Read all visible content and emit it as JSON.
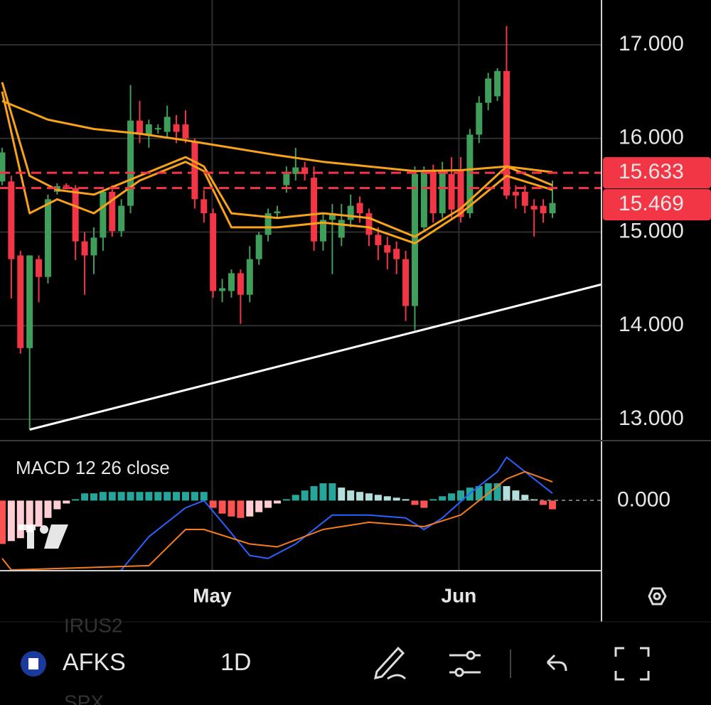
{
  "chart_data": {
    "type": "candlestick",
    "up_color": "#3f9f5a",
    "down_color": "#f23645",
    "xlim": [
      -0.23,
      65.35
    ],
    "ylim": [
      12.772,
      17.478
    ],
    "yticks": [
      {
        "value": 17,
        "label": "17.000"
      },
      {
        "value": 16,
        "label": "16.000"
      },
      {
        "value": 15,
        "label": "15.000"
      },
      {
        "value": 14,
        "label": "14.000"
      },
      {
        "value": 13,
        "label": "13.000"
      }
    ],
    "xticks": [
      {
        "value": 22.9,
        "label": "May"
      },
      {
        "value": 49.8,
        "label": "Jun"
      }
    ],
    "grid": true,
    "candles": [
      [
        15.54,
        15.9,
        15.5,
        15.85
      ],
      [
        15.54,
        15.6,
        14.29,
        14.71
      ],
      [
        14.75,
        14.8,
        13.7,
        13.76
      ],
      [
        13.76,
        14.75,
        12.89,
        14.75
      ],
      [
        14.71,
        14.75,
        14.25,
        14.52
      ],
      [
        14.52,
        15.4,
        14.45,
        15.35
      ],
      [
        15.43,
        15.52,
        15.4,
        15.49
      ],
      [
        15.5,
        15.52,
        15.47,
        15.49
      ],
      [
        15.47,
        15.5,
        14.7,
        14.9
      ],
      [
        14.9,
        15.0,
        14.33,
        14.75
      ],
      [
        14.75,
        15.05,
        14.55,
        14.94
      ],
      [
        14.94,
        15.45,
        14.8,
        15.43
      ],
      [
        15.43,
        15.5,
        14.95,
        15.01
      ],
      [
        15.01,
        15.35,
        14.95,
        15.28
      ],
      [
        15.28,
        16.57,
        15.2,
        16.19
      ],
      [
        16.19,
        16.4,
        15.95,
        16.04
      ],
      [
        16.04,
        16.2,
        15.9,
        16.15
      ],
      [
        16.11,
        16.15,
        16.05,
        16.11
      ],
      [
        16.07,
        16.35,
        16.0,
        16.23
      ],
      [
        16.15,
        16.25,
        15.95,
        16.07
      ],
      [
        16.15,
        16.3,
        15.95,
        16.0
      ],
      [
        15.96,
        16.0,
        15.25,
        15.35
      ],
      [
        15.35,
        15.45,
        15.1,
        15.2
      ],
      [
        15.2,
        15.25,
        14.3,
        14.37
      ],
      [
        14.37,
        14.5,
        14.25,
        14.4
      ],
      [
        14.37,
        14.6,
        14.3,
        14.56
      ],
      [
        14.56,
        14.6,
        14.02,
        14.33
      ],
      [
        14.33,
        14.85,
        14.25,
        14.71
      ],
      [
        14.71,
        15.0,
        14.65,
        14.97
      ],
      [
        14.97,
        15.25,
        14.9,
        15.2
      ],
      [
        15.2,
        15.28,
        15.15,
        15.22
      ],
      [
        15.5,
        15.7,
        15.42,
        15.62
      ],
      [
        15.62,
        15.9,
        15.55,
        15.69
      ],
      [
        15.69,
        15.75,
        15.55,
        15.62
      ],
      [
        15.58,
        15.7,
        14.8,
        14.9
      ],
      [
        14.9,
        15.2,
        14.8,
        15.13
      ],
      [
        15.13,
        15.3,
        14.55,
        15.2
      ],
      [
        14.94,
        15.3,
        14.85,
        15.13
      ],
      [
        15.13,
        15.4,
        15.05,
        15.28
      ],
      [
        15.31,
        15.38,
        15.1,
        15.2
      ],
      [
        15.2,
        15.25,
        14.85,
        14.97
      ],
      [
        14.97,
        15.05,
        14.7,
        14.86
      ],
      [
        14.86,
        14.95,
        14.6,
        14.78
      ],
      [
        14.82,
        14.9,
        14.55,
        14.71
      ],
      [
        14.71,
        14.8,
        14.05,
        14.21
      ],
      [
        14.21,
        15.7,
        13.95,
        15.62
      ],
      [
        15.05,
        15.7,
        15.0,
        15.66
      ],
      [
        15.66,
        15.72,
        15.1,
        15.2
      ],
      [
        15.2,
        15.75,
        15.15,
        15.66
      ],
      [
        15.62,
        15.8,
        15.15,
        15.24
      ],
      [
        15.66,
        15.8,
        15.1,
        15.16
      ],
      [
        15.2,
        16.1,
        15.15,
        16.04
      ],
      [
        16.04,
        16.45,
        15.95,
        16.38
      ],
      [
        16.38,
        16.7,
        16.3,
        16.64
      ],
      [
        16.45,
        16.75,
        16.4,
        16.72
      ],
      [
        16.72,
        17.2,
        15.35,
        15.39
      ],
      [
        15.43,
        15.5,
        15.25,
        15.39
      ],
      [
        15.43,
        15.5,
        15.2,
        15.28
      ],
      [
        15.28,
        15.35,
        14.95,
        15.24
      ],
      [
        15.28,
        15.35,
        15.1,
        15.2
      ],
      [
        15.2,
        15.55,
        15.15,
        15.31
      ]
    ],
    "series": [
      {
        "color": "#f7a21b",
        "x": [
          0,
          5,
          10,
          15,
          20,
          25,
          30,
          35,
          40,
          45,
          50,
          55,
          60
        ],
        "values": [
          16.4,
          16.2,
          16.1,
          16.05,
          15.98,
          15.9,
          15.82,
          15.75,
          15.7,
          15.65,
          15.66,
          15.7,
          15.64
        ]
      },
      {
        "color": "#f7a21b",
        "x": [
          0,
          3,
          6,
          10,
          15,
          20,
          22,
          25,
          30,
          35,
          40,
          45,
          50,
          55,
          60
        ],
        "values": [
          16.6,
          15.6,
          15.45,
          15.4,
          15.6,
          15.8,
          15.7,
          15.2,
          15.15,
          15.2,
          15.15,
          14.95,
          15.25,
          15.7,
          15.5
        ]
      },
      {
        "color": "#f7a21b",
        "x": [
          0,
          3,
          6,
          10,
          15,
          20,
          22,
          25,
          30,
          35,
          40,
          45,
          50,
          55,
          60
        ],
        "values": [
          16.5,
          15.2,
          15.35,
          15.2,
          15.55,
          15.75,
          15.65,
          15.05,
          15.05,
          15.1,
          15.05,
          14.88,
          15.2,
          15.6,
          15.45
        ]
      }
    ],
    "trendline": {
      "color": "#ffffff",
      "x": [
        3,
        65.35
      ],
      "values": [
        12.89,
        14.44
      ]
    },
    "price_lines": [
      {
        "value": 15.633,
        "label": "15.633"
      },
      {
        "value": 15.469,
        "label": "15.469"
      }
    ],
    "price_line_color": "#f23645",
    "macd": {
      "title": "MACD 12 26 close",
      "ylim": [
        -0.485,
        0.415
      ],
      "yticks": [
        {
          "value": 0,
          "label": "0.000"
        }
      ],
      "histogram": [
        -0.3,
        -0.28,
        -0.26,
        -0.22,
        -0.18,
        -0.12,
        -0.06,
        -0.02,
        0.01,
        0.05,
        0.05,
        0.06,
        0.06,
        0.06,
        0.06,
        0.06,
        0.06,
        0.06,
        0.06,
        0.06,
        0.06,
        0.06,
        0.06,
        -0.05,
        -0.09,
        -0.11,
        -0.12,
        -0.11,
        -0.08,
        -0.05,
        -0.02,
        0.01,
        0.04,
        0.07,
        0.1,
        0.12,
        0.12,
        0.09,
        0.07,
        0.06,
        0.05,
        0.04,
        0.03,
        0.02,
        0.01,
        -0.03,
        -0.05,
        0.01,
        0.03,
        0.05,
        0.07,
        0.09,
        0.1,
        0.12,
        0.12,
        0.1,
        0.07,
        0.04,
        0.01,
        -0.03,
        -0.06
      ],
      "hist_colors": {
        "up_grow": "#26a69a",
        "up_fall": "#b2dfdb",
        "down_grow": "#ff5252",
        "down_fall": "#ffcdd2"
      },
      "series": [
        {
          "color": "#2962ff",
          "x": [
            13,
            16,
            20,
            22,
            24,
            27,
            29,
            32,
            36,
            40,
            44,
            46,
            48,
            51,
            54,
            55,
            58,
            60
          ],
          "values": [
            -0.48,
            -0.25,
            -0.05,
            0.0,
            -0.15,
            -0.38,
            -0.4,
            -0.3,
            -0.1,
            -0.1,
            -0.12,
            -0.2,
            -0.12,
            0.05,
            0.2,
            0.3,
            0.15,
            0.05
          ]
        },
        {
          "color": "#f57c1f",
          "x": [
            0,
            1,
            16,
            20,
            22,
            27,
            30,
            35,
            40,
            46,
            50,
            55,
            57,
            60
          ],
          "values": [
            -0.4,
            -0.48,
            -0.45,
            -0.2,
            -0.2,
            -0.3,
            -0.32,
            -0.2,
            -0.15,
            -0.18,
            -0.1,
            0.15,
            0.2,
            0.13
          ]
        }
      ]
    }
  },
  "toolbar": {
    "symbol": "AFKS",
    "interval": "1D",
    "ghost": [
      "IRUS2",
      "SPX"
    ]
  }
}
